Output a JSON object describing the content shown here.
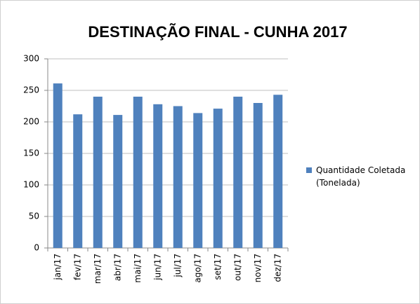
{
  "chart_data": {
    "type": "bar",
    "title": "DESTINAÇÃO FINAL - CUNHA 2017",
    "categories": [
      "jan/17",
      "fev/17",
      "mar/17",
      "abr/17",
      "mai/17",
      "jun/17",
      "jul/17",
      "ago/17",
      "set/17",
      "out/17",
      "nov/17",
      "dez/17"
    ],
    "series": [
      {
        "name": "Quantidade Coletada (Tonelada)",
        "color": "#4f81bd",
        "values": [
          261,
          212,
          240,
          211,
          240,
          228,
          225,
          214,
          221,
          240,
          230,
          243
        ]
      }
    ],
    "ylim": [
      0,
      300
    ],
    "yticks": [
      0,
      50,
      100,
      150,
      200,
      250,
      300
    ],
    "grid": true,
    "legend": "right"
  }
}
